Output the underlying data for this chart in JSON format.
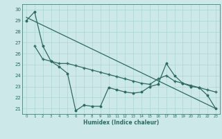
{
  "xlabel": "Humidex (Indice chaleur)",
  "background_color": "#cce8e8",
  "grid_color": "#aad4d4",
  "line_color": "#2e6b5e",
  "xlim": [
    -0.5,
    23.5
  ],
  "ylim": [
    20.5,
    30.5
  ],
  "yticks": [
    21,
    22,
    23,
    24,
    25,
    26,
    27,
    28,
    29,
    30
  ],
  "xticks": [
    0,
    1,
    2,
    3,
    4,
    5,
    6,
    7,
    8,
    9,
    10,
    11,
    12,
    13,
    14,
    15,
    16,
    17,
    18,
    19,
    20,
    21,
    22,
    23
  ],
  "series1_x": [
    0,
    1,
    2,
    3,
    4,
    5,
    6,
    7,
    8,
    9,
    10,
    11,
    12,
    13,
    14,
    15,
    16,
    17,
    18,
    19,
    20,
    21,
    22,
    23
  ],
  "series1_y": [
    29.0,
    29.8,
    26.7,
    25.3,
    24.8,
    24.2,
    20.8,
    21.3,
    21.2,
    21.2,
    22.9,
    22.7,
    22.5,
    22.4,
    22.5,
    23.0,
    23.2,
    25.1,
    24.0,
    23.3,
    23.0,
    22.9,
    22.2,
    21.0
  ],
  "series2_x": [
    1,
    2,
    3,
    4,
    5,
    6,
    7,
    8,
    9,
    10,
    11,
    12,
    13,
    14,
    15,
    16,
    17,
    18,
    19,
    20,
    21,
    22,
    23
  ],
  "series2_y": [
    26.7,
    25.5,
    25.3,
    25.1,
    25.1,
    24.9,
    24.7,
    24.5,
    24.3,
    24.1,
    23.9,
    23.7,
    23.5,
    23.3,
    23.2,
    23.7,
    24.0,
    23.5,
    23.3,
    23.1,
    22.9,
    22.7,
    22.5
  ],
  "trend_x": [
    0,
    23
  ],
  "trend_y": [
    29.3,
    21.0
  ]
}
